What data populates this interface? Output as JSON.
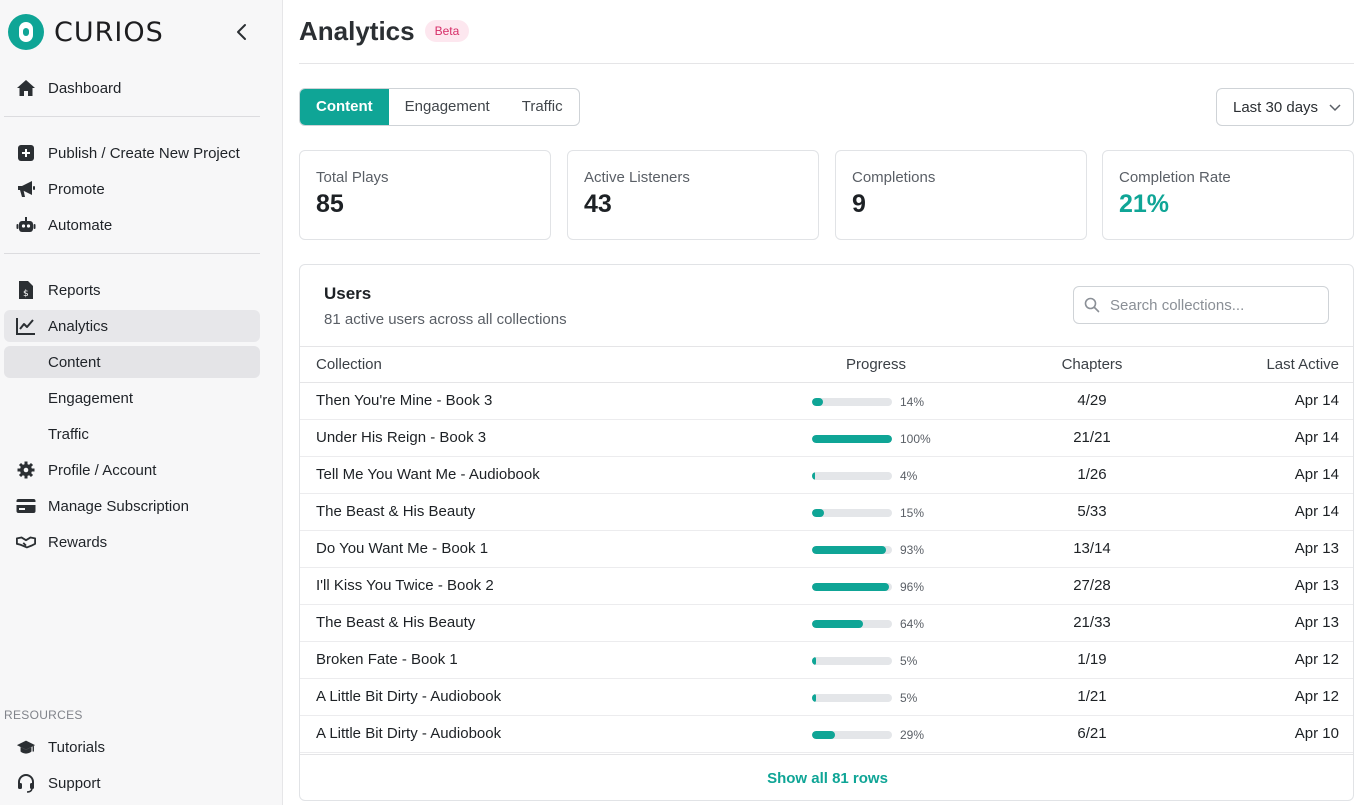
{
  "brand": {
    "name": "CURIOS"
  },
  "colors": {
    "accent": "#0fa596",
    "beta_bg": "#fde7ef",
    "beta_text": "#d62e68"
  },
  "sidebar": {
    "items": [
      {
        "label": "Dashboard",
        "icon": "home-icon"
      },
      {
        "label": "Publish / Create New Project",
        "icon": "plus-square-icon"
      },
      {
        "label": "Promote",
        "icon": "megaphone-icon"
      },
      {
        "label": "Automate",
        "icon": "robot-icon"
      },
      {
        "label": "Reports",
        "icon": "invoice-icon"
      },
      {
        "label": "Analytics",
        "icon": "line-chart-icon",
        "active": true
      },
      {
        "label": "Profile / Account",
        "icon": "gear-icon"
      },
      {
        "label": "Manage Subscription",
        "icon": "credit-card-icon"
      },
      {
        "label": "Rewards",
        "icon": "handshake-icon"
      }
    ],
    "analytics_sub": [
      {
        "label": "Content",
        "active": true
      },
      {
        "label": "Engagement"
      },
      {
        "label": "Traffic"
      }
    ],
    "resources_label": "RESOURCES",
    "resources": [
      {
        "label": "Tutorials",
        "icon": "graduation-cap-icon"
      },
      {
        "label": "Support",
        "icon": "headset-icon"
      }
    ]
  },
  "header": {
    "title": "Analytics",
    "badge": "Beta"
  },
  "tabs": [
    {
      "label": "Content",
      "active": true
    },
    {
      "label": "Engagement"
    },
    {
      "label": "Traffic"
    }
  ],
  "date_range": {
    "selected": "Last 30 days"
  },
  "stats": [
    {
      "label": "Total Plays",
      "value": "85"
    },
    {
      "label": "Active Listeners",
      "value": "43"
    },
    {
      "label": "Completions",
      "value": "9"
    },
    {
      "label": "Completion Rate",
      "value": "21%"
    }
  ],
  "users": {
    "title": "Users",
    "subtitle": "81 active users across all collections",
    "search_placeholder": "Search collections...",
    "columns": [
      "Collection",
      "Progress",
      "Chapters",
      "Last Active"
    ],
    "rows": [
      {
        "collection": "Then You're Mine - Book 3",
        "progress": 14,
        "progress_label": "14%",
        "chapters": "4/29",
        "last_active": "Apr 14"
      },
      {
        "collection": "Under His Reign - Book 3",
        "progress": 100,
        "progress_label": "100%",
        "chapters": "21/21",
        "last_active": "Apr 14"
      },
      {
        "collection": "Tell Me You Want Me - Audiobook",
        "progress": 4,
        "progress_label": "4%",
        "chapters": "1/26",
        "last_active": "Apr 14"
      },
      {
        "collection": "The Beast & His Beauty",
        "progress": 15,
        "progress_label": "15%",
        "chapters": "5/33",
        "last_active": "Apr 14"
      },
      {
        "collection": "Do You Want Me - Book 1",
        "progress": 93,
        "progress_label": "93%",
        "chapters": "13/14",
        "last_active": "Apr 13"
      },
      {
        "collection": "I'll Kiss You Twice - Book 2",
        "progress": 96,
        "progress_label": "96%",
        "chapters": "27/28",
        "last_active": "Apr 13"
      },
      {
        "collection": "The Beast & His Beauty",
        "progress": 64,
        "progress_label": "64%",
        "chapters": "21/33",
        "last_active": "Apr 13"
      },
      {
        "collection": "Broken Fate - Book 1",
        "progress": 5,
        "progress_label": "5%",
        "chapters": "1/19",
        "last_active": "Apr 12"
      },
      {
        "collection": "A Little Bit Dirty - Audiobook",
        "progress": 5,
        "progress_label": "5%",
        "chapters": "1/21",
        "last_active": "Apr 12"
      },
      {
        "collection": "A Little Bit Dirty - Audiobook",
        "progress": 29,
        "progress_label": "29%",
        "chapters": "6/21",
        "last_active": "Apr 10"
      }
    ],
    "show_all": "Show all 81 rows"
  }
}
